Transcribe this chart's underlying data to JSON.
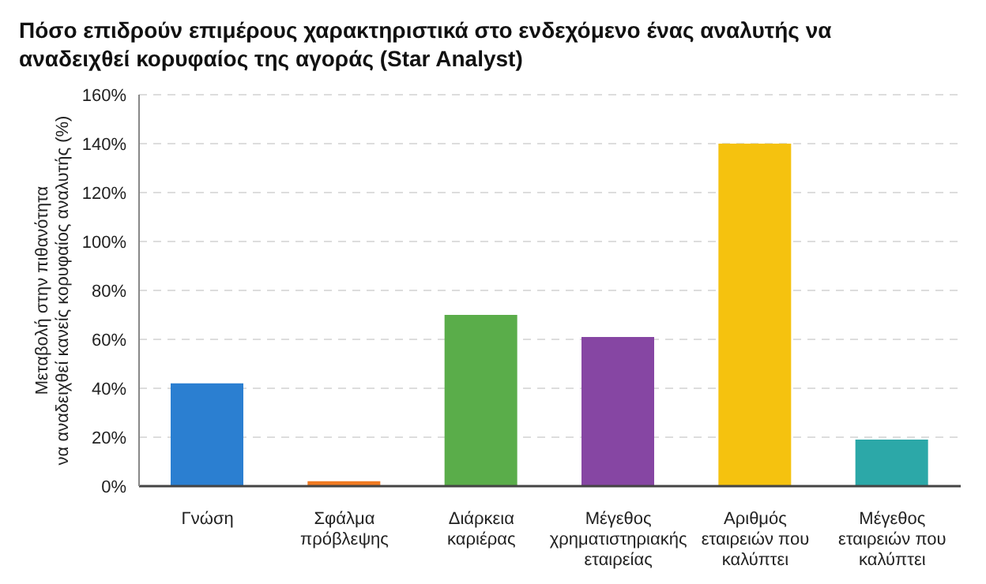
{
  "chart_data": {
    "type": "bar",
    "title": "Πόσο επιδρούν επιμέρους χαρακτηριστικά στο ενδεχόμενο ένας αναλυτής να αναδειχθεί κορυφαίος της αγοράς (Star Analyst)",
    "ylabel": "Μεταβολή στην πιθανότητα\nνα αναδειχθεί κανείς κορυφαίος αναλυτής (%)",
    "categories": [
      "Γνώση",
      "Σφάλμα\nπρόβλεψης",
      "Διάρκεια\nκαριέρας",
      "Μέγεθος\nχρηματιστηριακής\nεταιρείας",
      "Αριθμός\nεταιρειών που\nκαλύπτει",
      "Μέγεθος\nεταιρειών που\nκαλύπτει"
    ],
    "values": [
      42,
      2,
      70,
      61,
      140,
      19
    ],
    "colors": [
      "#2b7fd1",
      "#f07a22",
      "#5aad4a",
      "#8646a3",
      "#f5c20f",
      "#2ca8a8"
    ],
    "ylim": [
      0,
      160
    ],
    "yticks": [
      {
        "value": 0,
        "label": "0%"
      },
      {
        "value": 20,
        "label": "20%"
      },
      {
        "value": 40,
        "label": "40%"
      },
      {
        "value": 60,
        "label": "60%"
      },
      {
        "value": 80,
        "label": "80%"
      },
      {
        "value": 100,
        "label": "100%"
      },
      {
        "value": 120,
        "label": "120%"
      },
      {
        "value": 140,
        "label": "140%"
      },
      {
        "value": 160,
        "label": "160%"
      }
    ],
    "grid": "y"
  }
}
